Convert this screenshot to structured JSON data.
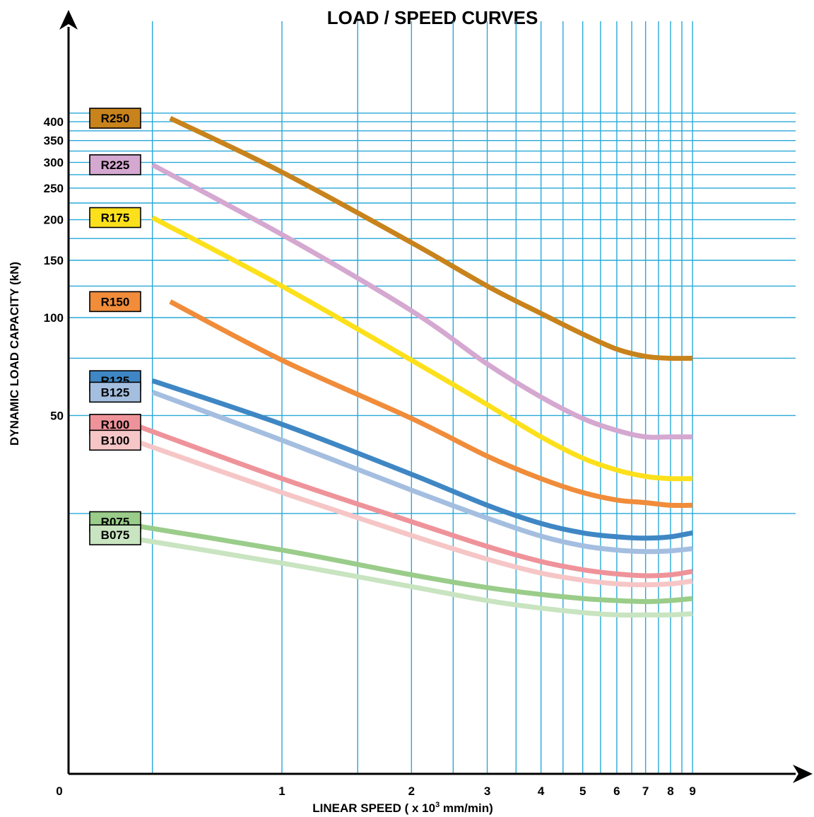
{
  "chart_data": {
    "type": "line",
    "title": "LOAD / SPEED CURVES",
    "xlabel": {
      "prefix": "LINEAR SPEED ( x 10",
      "exponent": "3",
      "suffix": " mm/min)"
    },
    "ylabel": "DYNAMIC LOAD CAPACITY (kN)",
    "x_scale": "log",
    "y_scale": "log",
    "grid": true,
    "legend_placement": "left",
    "x_ticks": [
      "0",
      "1",
      "2",
      "3",
      "4",
      "5",
      "6",
      "7",
      "8",
      "9"
    ],
    "y_ticks": [
      "400",
      "350",
      "300",
      "250",
      "200",
      "150",
      "100",
      "50"
    ],
    "series": [
      {
        "name": "R250",
        "color": "#c8831c",
        "x": [
          0.55,
          1,
          2,
          3,
          4,
          5,
          6,
          7,
          8,
          9
        ],
        "y": [
          410,
          280,
          170,
          125,
          103,
          89,
          80,
          76,
          75,
          75
        ]
      },
      {
        "name": "R225",
        "color": "#d4a8d0",
        "x": [
          0.5,
          1,
          2,
          3,
          4,
          5,
          6,
          7,
          8,
          9
        ],
        "y": [
          295,
          180,
          105,
          72,
          57,
          49,
          45,
          43,
          43,
          43
        ]
      },
      {
        "name": "R175",
        "color": "#fde01c",
        "x": [
          0.5,
          1,
          2,
          3,
          4,
          5,
          6,
          7,
          8,
          9
        ],
        "y": [
          203,
          125,
          74,
          54,
          43,
          37,
          34,
          32.5,
          32,
          32
        ]
      },
      {
        "name": "R150",
        "color": "#f08c3a",
        "x": [
          0.55,
          1,
          2,
          3,
          4,
          5,
          6,
          7,
          8,
          9
        ],
        "y": [
          112,
          74,
          49,
          37.5,
          32,
          29,
          27.5,
          27,
          26.5,
          26.5
        ]
      },
      {
        "name": "R125",
        "color": "#3f87c4",
        "x": [
          0.5,
          1,
          2,
          3,
          4,
          5,
          6,
          7,
          8,
          9
        ],
        "y": [
          64,
          47,
          33,
          26.5,
          23.3,
          21.8,
          21.2,
          21,
          21.2,
          21.8
        ]
      },
      {
        "name": "B125",
        "color": "#a4bee0",
        "x": [
          0.5,
          1,
          2,
          3,
          4,
          5,
          6,
          7,
          8,
          9
        ],
        "y": [
          59,
          42,
          29.5,
          24.2,
          21.3,
          19.9,
          19.3,
          19.1,
          19.2,
          19.5
        ]
      },
      {
        "name": "R100",
        "color": "#ef939a",
        "x": [
          0.45,
          1,
          2,
          3,
          4,
          5,
          6,
          7,
          8,
          9
        ],
        "y": [
          47,
          32,
          23.6,
          19.8,
          17.8,
          16.8,
          16.3,
          16.1,
          16.2,
          16.6
        ]
      },
      {
        "name": "B100",
        "color": "#f6c6c6",
        "x": [
          0.45,
          1,
          2,
          3,
          4,
          5,
          6,
          7,
          8,
          9
        ],
        "y": [
          42,
          29,
          21.4,
          18.1,
          16.4,
          15.6,
          15.2,
          15.1,
          15.2,
          15.5
        ]
      },
      {
        "name": "R075",
        "color": "#9acc8a",
        "x": [
          0.4,
          1,
          2,
          3,
          4,
          5,
          6,
          7,
          8,
          9
        ],
        "y": [
          23.6,
          19.3,
          16.2,
          14.8,
          14.1,
          13.7,
          13.5,
          13.4,
          13.5,
          13.7
        ]
      },
      {
        "name": "B075",
        "color": "#c8e4c0",
        "x": [
          0.4,
          1,
          2,
          3,
          4,
          5,
          6,
          7,
          8,
          9
        ],
        "y": [
          21.5,
          17.6,
          14.9,
          13.5,
          12.8,
          12.4,
          12.2,
          12.2,
          12.2,
          12.3
        ]
      }
    ]
  }
}
